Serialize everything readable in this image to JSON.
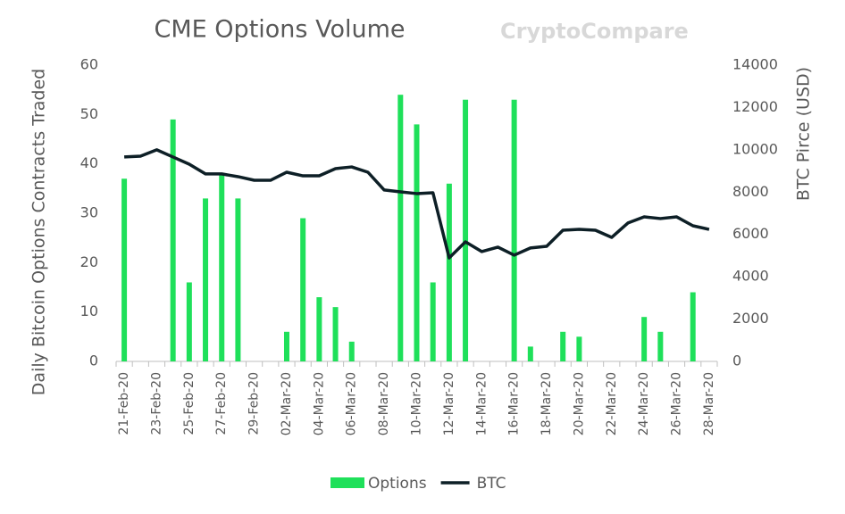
{
  "chart_data": {
    "type": "bar",
    "title": "CME Options Volume",
    "watermark": "CryptoCompare",
    "ylabel": "Daily Bitcoin Options Contracts Traded",
    "y2label": "BTC Pirce (USD)",
    "categories": [
      "21-Feb-20",
      null,
      "23-Feb-20",
      null,
      "25-Feb-20",
      null,
      "27-Feb-20",
      null,
      "29-Feb-20",
      null,
      "02-Mar-20",
      null,
      "04-Mar-20",
      null,
      "06-Mar-20",
      null,
      "08-Mar-20",
      null,
      "10-Mar-20",
      null,
      "12-Mar-20",
      null,
      "14-Mar-20",
      null,
      "16-Mar-20",
      null,
      "18-Mar-20",
      null,
      "20-Mar-20",
      null,
      "22-Mar-20",
      null,
      "24-Mar-20",
      null,
      "26-Mar-20",
      null,
      "28-Mar-20"
    ],
    "series": [
      {
        "name": "Options",
        "type": "bar",
        "color": "#1fe05a",
        "values": [
          37,
          0,
          0,
          49,
          16,
          33,
          38,
          33,
          0,
          0,
          6,
          29,
          13,
          11,
          4,
          0,
          0,
          54,
          48,
          16,
          36,
          53,
          0,
          0,
          53,
          3,
          0,
          6,
          5,
          0,
          0,
          0,
          9,
          6,
          0,
          14,
          0
        ]
      },
      {
        "name": "BTC",
        "type": "line",
        "axis": "y2",
        "color": "#0d1f26",
        "values": [
          9660,
          9700,
          10000,
          9660,
          9320,
          8860,
          8860,
          8730,
          8560,
          8560,
          8940,
          8770,
          8770,
          9110,
          9190,
          8940,
          8100,
          8010,
          7930,
          7970,
          4890,
          5650,
          5190,
          5400,
          5020,
          5360,
          5440,
          6200,
          6240,
          6200,
          5860,
          6540,
          6830,
          6750,
          6830,
          6410,
          6240
        ]
      }
    ],
    "ylim": [
      0,
      60
    ],
    "yticks": [
      0,
      10,
      20,
      30,
      40,
      50,
      60
    ],
    "y2lim": [
      0,
      14000
    ],
    "y2ticks": [
      0,
      2000,
      4000,
      6000,
      8000,
      10000,
      12000,
      14000
    ],
    "grid": false,
    "legend": "bottom"
  }
}
